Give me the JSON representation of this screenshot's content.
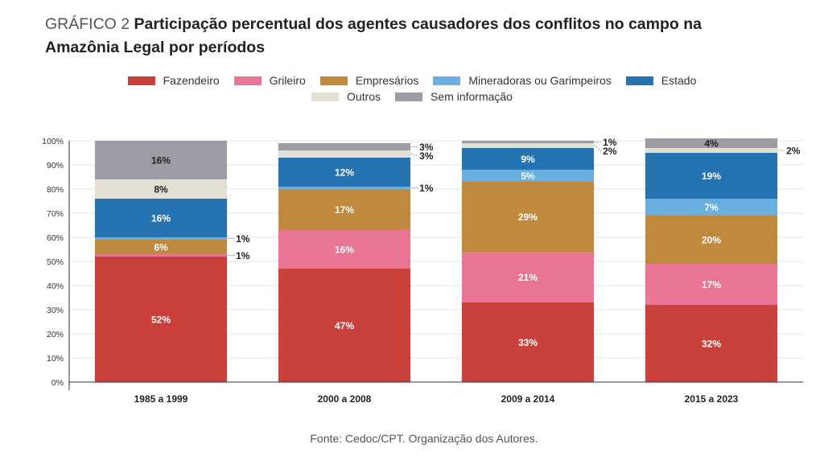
{
  "header": {
    "prefix": "GRÁFICO 2",
    "title": "Participação percentual dos agentes causadores dos conflitos no campo na Amazônia Legal por períodos"
  },
  "colors": {
    "Fazendeiro": "#c9413a",
    "Grileiro": "#e87593",
    "Empresários": "#c08a3e",
    "Mineradoras ou Garimpeiros": "#6aafde",
    "Estado": "#2673b1",
    "Outros": "#e3dfd3",
    "Sem informação": "#9d9ca4"
  },
  "legend": {
    "row1": [
      "Fazendeiro",
      "Grileiro",
      "Empresários",
      "Mineradoras ou Garimpeiros",
      "Estado"
    ],
    "row2": [
      "Outros",
      "Sem informação"
    ]
  },
  "chart_data": {
    "type": "bar",
    "stacked": true,
    "categories": [
      "1985 a 1999",
      "2000 a 2008",
      "2009 a 2014",
      "2015 a 2023"
    ],
    "series": [
      {
        "name": "Fazendeiro",
        "values": [
          52,
          47,
          33,
          32
        ]
      },
      {
        "name": "Grileiro",
        "values": [
          1,
          16,
          21,
          17
        ]
      },
      {
        "name": "Empresários",
        "values": [
          6,
          17,
          29,
          20
        ]
      },
      {
        "name": "Mineradoras ou Garimpeiros",
        "values": [
          1,
          1,
          5,
          7
        ]
      },
      {
        "name": "Estado",
        "values": [
          16,
          12,
          9,
          19
        ]
      },
      {
        "name": "Outros",
        "values": [
          8,
          3,
          2,
          2
        ]
      },
      {
        "name": "Sem informação",
        "values": [
          16,
          3,
          1,
          4
        ]
      }
    ],
    "ylim": [
      0,
      100
    ],
    "yticks": [
      "0%",
      "10%",
      "20%",
      "30%",
      "40%",
      "50%",
      "60%",
      "70%",
      "80%",
      "90%",
      "100%"
    ],
    "grid": true,
    "legend_position": "top",
    "callout_threshold": 4
  },
  "footer": {
    "source": "Fonte: Cedoc/CPT. Organização dos Autores."
  }
}
